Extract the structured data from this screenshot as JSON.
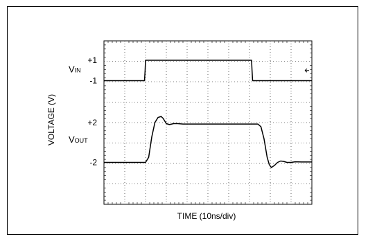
{
  "chart_data": {
    "type": "line",
    "title": "",
    "xlabel": "TIME (10ns/div)",
    "ylabel": "VOLTAGE (V)",
    "grid": true,
    "x_divisions": 10,
    "y_divisions": 8,
    "trace_labels": [
      {
        "main": "V",
        "sub": "IN",
        "y_div": 6.6
      },
      {
        "main": "V",
        "sub": "OUT",
        "y_div": 3.15
      }
    ],
    "tick_labels": [
      {
        "text": "+1",
        "y_div": 7.05
      },
      {
        "text": "-1",
        "y_div": 6.05
      },
      {
        "text": "+2",
        "y_div": 4.0
      },
      {
        "text": "-2",
        "y_div": 2.05
      }
    ],
    "series": [
      {
        "x": [
          0,
          1.95,
          1.98,
          2.0,
          7.1,
          7.12,
          7.15,
          10
        ],
        "y": [
          6.05,
          6.05,
          6.55,
          7.05,
          7.05,
          6.6,
          6.05,
          6.05
        ]
      },
      {
        "x": [
          0,
          2.0,
          2.15,
          2.3,
          2.45,
          2.6,
          2.75,
          2.85,
          3.0,
          3.15,
          3.35,
          3.55,
          3.8,
          4.2,
          5.0,
          6.0,
          7.0,
          7.4,
          7.55,
          7.7,
          7.85,
          7.95,
          8.05,
          8.2,
          8.35,
          8.5,
          8.65,
          8.8,
          9.0,
          9.2,
          9.5,
          10
        ],
        "y": [
          2.05,
          2.05,
          2.3,
          3.3,
          4.0,
          4.25,
          4.3,
          4.2,
          3.95,
          3.9,
          3.95,
          3.95,
          3.93,
          3.93,
          3.93,
          3.93,
          3.93,
          3.93,
          3.8,
          3.2,
          2.3,
          1.95,
          1.8,
          1.9,
          2.05,
          2.12,
          2.1,
          2.05,
          2.05,
          2.08,
          2.07,
          2.07
        ]
      }
    ]
  }
}
